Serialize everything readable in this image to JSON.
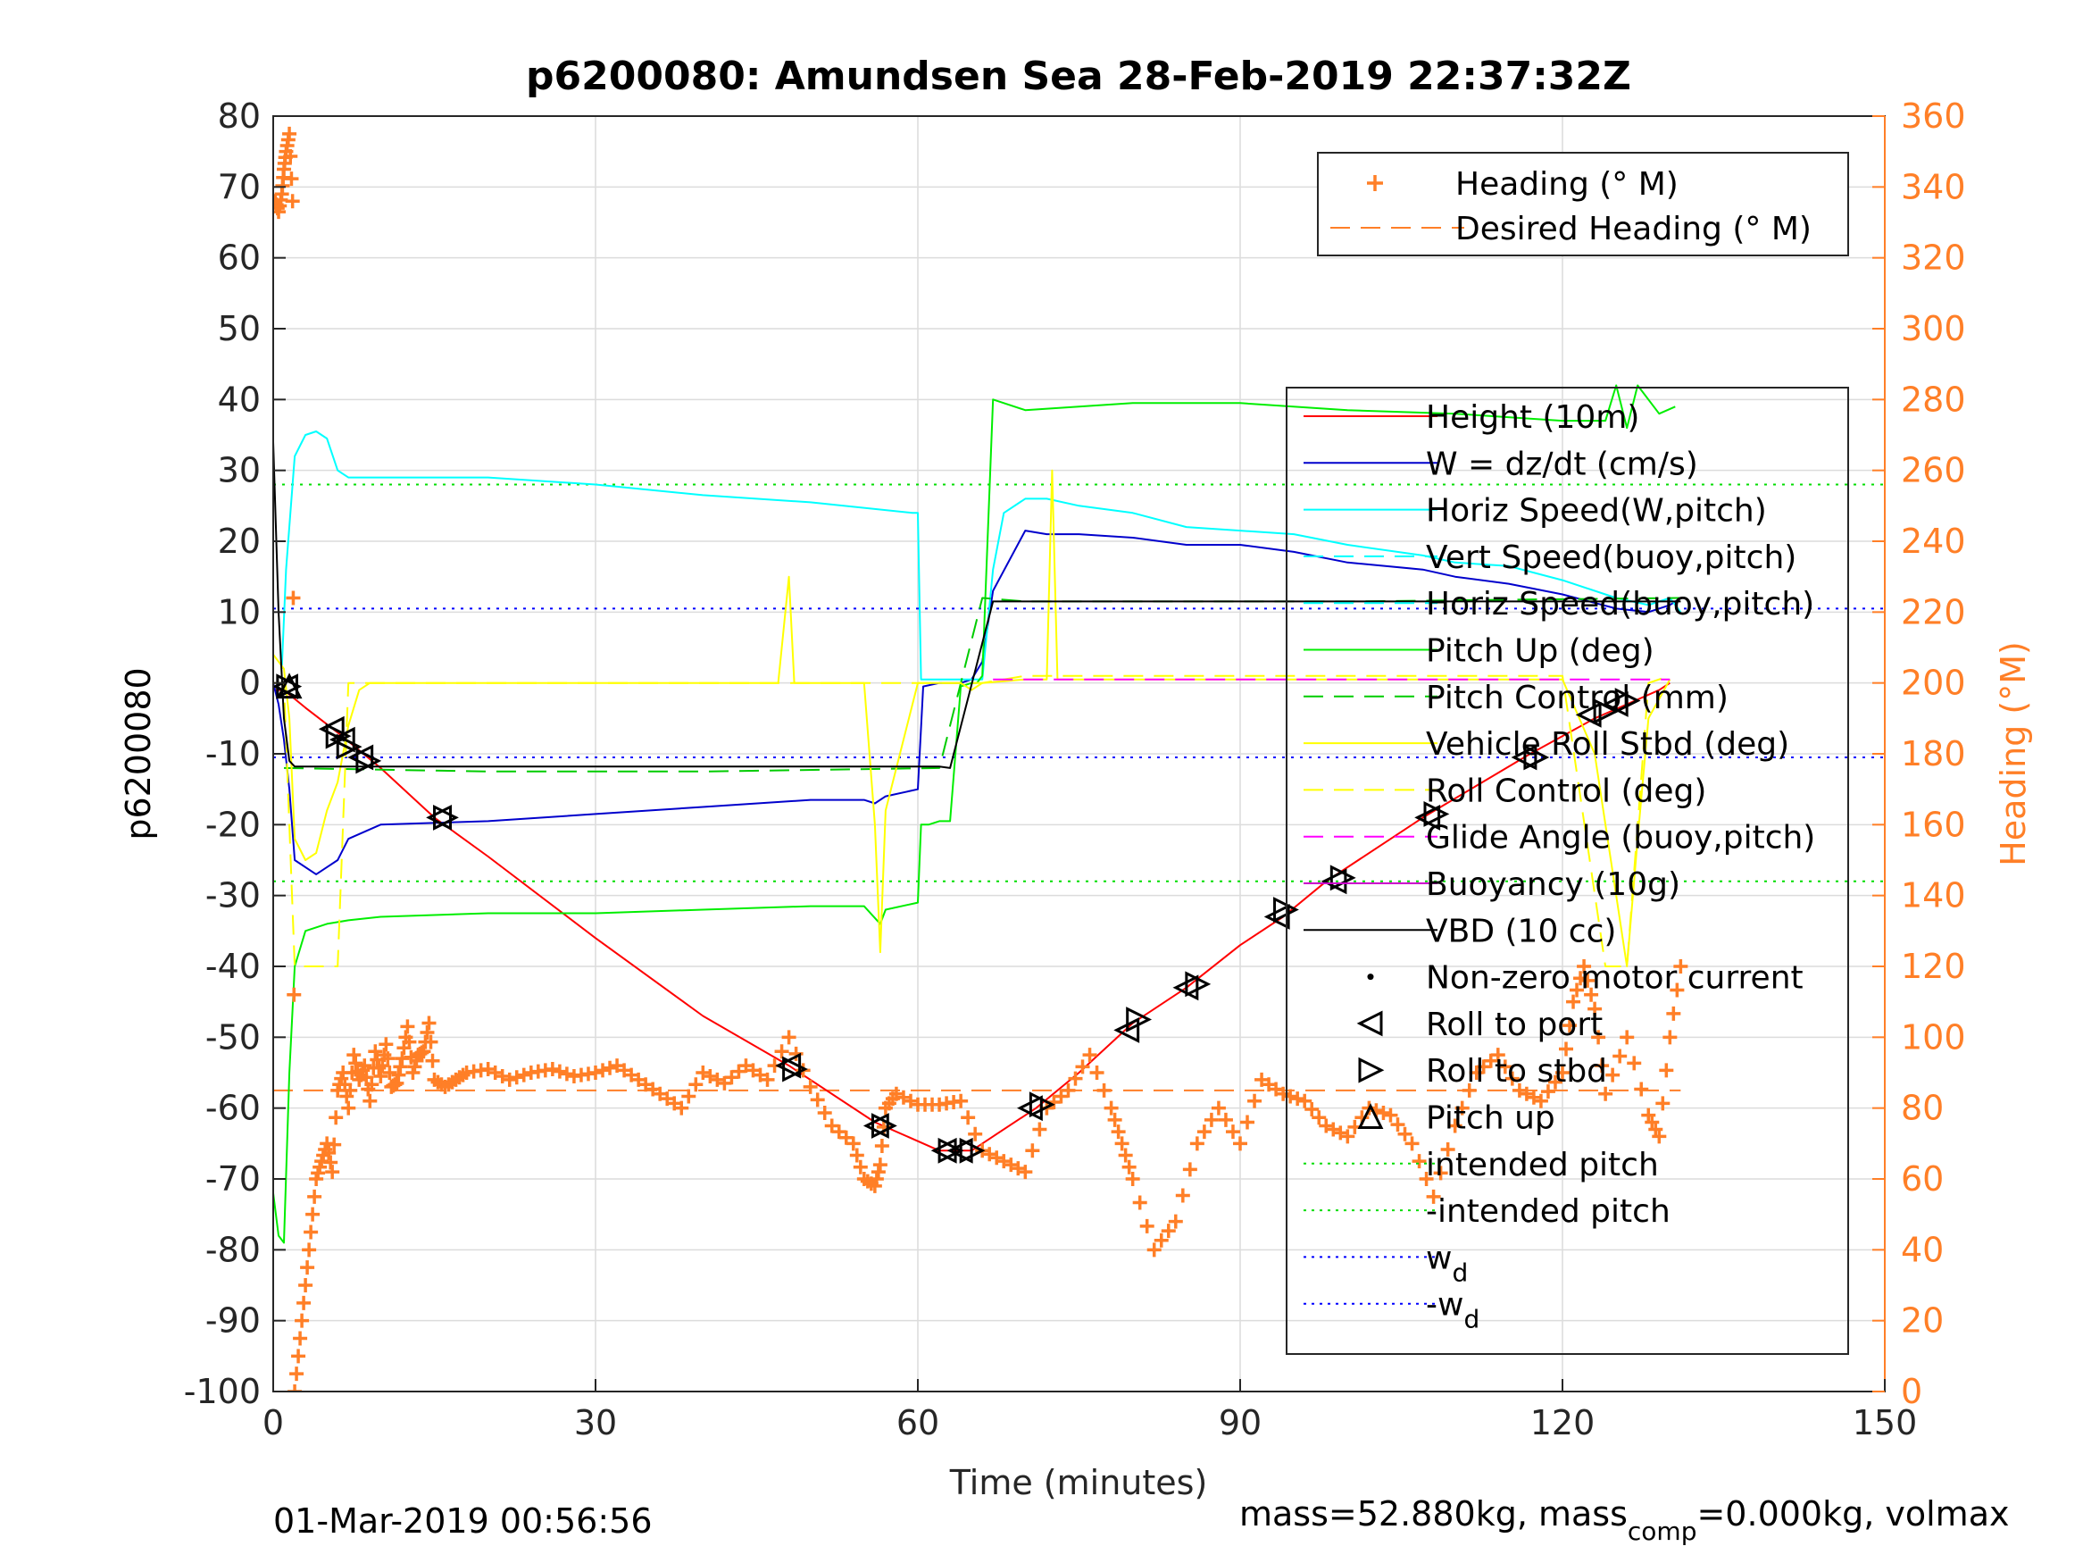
{
  "chart_data": {
    "type": "line",
    "title": "p6200080: Amundsen Sea 28-Feb-2019 22:37:32Z",
    "xlabel": "Time (minutes)",
    "ylabel_left": "p6200080",
    "ylabel_right": "Heading (°M)",
    "xlim": [
      0,
      150
    ],
    "ylim_left": [
      -100,
      80
    ],
    "ylim_right": [
      0,
      360
    ],
    "x_ticks": [
      0,
      30,
      60,
      90,
      120,
      150
    ],
    "y_left_ticks": [
      80,
      70,
      60,
      50,
      40,
      30,
      20,
      10,
      0,
      -10,
      -20,
      -30,
      -40,
      -50,
      -60,
      -70,
      -80,
      -90,
      -100
    ],
    "y_right_ticks": [
      360,
      340,
      320,
      300,
      280,
      260,
      240,
      220,
      200,
      180,
      160,
      140,
      120,
      100,
      80,
      60,
      40,
      20,
      0
    ],
    "grid": true,
    "footer_left": "01-Mar-2019 00:56:56",
    "footer_right": "mass=52.880kg, mass",
    "footer_right_sub": "comp",
    "footer_right_tail": "=0.000kg, volmax",
    "legend_top": [
      {
        "label": "Heading (° M)",
        "color": "#FF7F27",
        "style": "plus"
      },
      {
        "label": "Desired Heading (° M)",
        "color": "#FF7F27",
        "style": "dashed"
      }
    ],
    "legend_main": [
      {
        "label": "Height (10m)",
        "color": "#FF0000",
        "style": "solid"
      },
      {
        "label": "W = dz/dt (cm/s)",
        "color": "#0000CC",
        "style": "solid"
      },
      {
        "label": "Horiz Speed(W,pitch)",
        "color": "#00FFFF",
        "style": "solid"
      },
      {
        "label": "Vert Speed(buoy,pitch)",
        "color": "#00FFFF",
        "style": "dashed"
      },
      {
        "label": "Horiz Speed(buoy,pitch)",
        "color": "#00FFFF",
        "style": "dashed"
      },
      {
        "label": "Pitch Up (deg)",
        "color": "#00EE00",
        "style": "solid"
      },
      {
        "label": "Pitch Control (mm)",
        "color": "#00CC00",
        "style": "dashed"
      },
      {
        "label": "Vehicle Roll Stbd (deg)",
        "color": "#FFFF00",
        "style": "solid"
      },
      {
        "label": "Roll Control (deg)",
        "color": "#FFFF00",
        "style": "dashed"
      },
      {
        "label": "Glide Angle (buoy,pitch)",
        "color": "#FF00FF",
        "style": "dashed"
      },
      {
        "label": "Buoyancy (10g)",
        "color": "#CC00CC",
        "style": "solid"
      },
      {
        "label": "VBD (10 cc)",
        "color": "#000000",
        "style": "solid"
      },
      {
        "label": "Non-zero motor current",
        "color": "#000000",
        "style": "dot"
      },
      {
        "label": "Roll to port",
        "color": "#000000",
        "style": "tri-left"
      },
      {
        "label": "Roll to stbd",
        "color": "#000000",
        "style": "tri-right"
      },
      {
        "label": "Pitch up",
        "color": "#000000",
        "style": "tri-up"
      },
      {
        "label": "intended pitch",
        "color": "#00DD00",
        "style": "dotted"
      },
      {
        "label": "-intended pitch",
        "color": "#00DD00",
        "style": "dotted"
      },
      {
        "label": "w",
        "sub": "d",
        "color": "#0000FF",
        "style": "dotted"
      },
      {
        "label": "-w",
        "sub": "d",
        "color": "#0000FF",
        "style": "dotted"
      }
    ],
    "reference_lines": {
      "intended_pitch": 28,
      "neg_intended_pitch": -28,
      "w_d": 10.5,
      "neg_w_d": -10.5,
      "desired_heading": 85
    },
    "series": [
      {
        "name": "Height (10m)",
        "color": "#FF0000",
        "x": [
          0,
          1,
          3,
          6,
          10,
          15,
          20,
          30,
          40,
          48,
          56,
          62,
          64,
          65,
          67,
          71,
          75,
          80,
          85,
          90,
          94,
          98,
          107,
          117,
          123,
          126,
          129,
          130
        ],
        "y": [
          -1,
          -1,
          -3.5,
          -7,
          -12,
          -19,
          -24.5,
          -36,
          -47,
          -54,
          -62,
          -66,
          -66,
          -66,
          -64,
          -60,
          -55,
          -48,
          -43,
          -37,
          -33,
          -28,
          -19,
          -10,
          -5,
          -3,
          -1,
          0
        ]
      },
      {
        "name": "W = dz/dt (cm/s)",
        "color": "#0000CC",
        "x": [
          0,
          0.5,
          1,
          1.5,
          2,
          4,
          5,
          6,
          7,
          10,
          20,
          30,
          40,
          50,
          55,
          56,
          57,
          60,
          60.5,
          62,
          64,
          65,
          66,
          67,
          70,
          72,
          75,
          80,
          85,
          90,
          95,
          100,
          107,
          110,
          115,
          120,
          125,
          128,
          130,
          131
        ],
        "y": [
          0,
          -3,
          -8,
          -15,
          -25,
          -27,
          -26,
          -25,
          -22,
          -20,
          -19.5,
          -18.5,
          -17.5,
          -16.5,
          -16.5,
          -17,
          -16,
          -15,
          -0.5,
          0,
          0,
          0.5,
          3,
          13,
          21.5,
          21,
          21,
          20.5,
          19.5,
          19.5,
          18.5,
          17,
          16,
          15,
          14,
          12.5,
          10.5,
          10,
          11,
          12
        ]
      },
      {
        "name": "Horiz Speed(W,pitch)",
        "color": "#00FFFF",
        "x": [
          0.8,
          1.2,
          2,
          3,
          4,
          5,
          6,
          7,
          10,
          20,
          30,
          40,
          50,
          59.5,
          60,
          60.3,
          66,
          67,
          68,
          70,
          72,
          75,
          80,
          85,
          90,
          95,
          100,
          107,
          110,
          115,
          120,
          125,
          128,
          130,
          131
        ],
        "y": [
          2,
          16,
          32,
          35,
          35.5,
          34.5,
          30,
          29,
          29,
          29,
          28,
          26.5,
          25.5,
          24,
          24,
          0.5,
          0.5,
          16,
          24,
          26,
          26,
          25,
          24,
          22,
          21.5,
          21,
          19.5,
          18,
          17,
          16.5,
          14.5,
          12,
          11,
          12,
          10
        ]
      },
      {
        "name": "Pitch Up (deg)",
        "color": "#00EE00",
        "x": [
          0,
          0.5,
          1,
          1.5,
          2,
          3,
          5,
          7,
          10,
          20,
          30,
          40,
          50,
          55,
          56.5,
          57,
          60,
          60.3,
          61,
          62,
          63,
          64,
          65,
          65.5,
          66,
          67,
          70,
          75,
          80,
          90,
          100,
          110,
          120,
          124,
          125,
          126,
          127,
          129,
          130.5
        ],
        "y": [
          -72,
          -78,
          -79,
          -55,
          -40,
          -35,
          -34,
          -33.5,
          -33,
          -32.5,
          -32.5,
          -32,
          -31.5,
          -31.5,
          -34,
          -32,
          -31,
          -20,
          -20,
          -19.5,
          -19.5,
          -0.5,
          0,
          0,
          1,
          40,
          38.5,
          39,
          39.5,
          39.5,
          38.5,
          38,
          37,
          37,
          42,
          36,
          42,
          38,
          39
        ]
      },
      {
        "name": "Pitch Control (mm)",
        "color": "#00CC00",
        "dashed": true,
        "x": [
          1,
          20,
          40,
          62,
          66,
          70,
          100,
          131
        ],
        "y": [
          -12,
          -12.5,
          -12.5,
          -12,
          12,
          11.5,
          11.5,
          12
        ]
      },
      {
        "name": "Vehicle Roll Stbd (deg)",
        "color": "#FFFF00",
        "x": [
          0,
          1,
          1.5,
          2,
          3,
          4,
          5,
          6,
          7,
          8,
          9,
          10,
          15,
          20,
          30,
          40,
          47,
          48,
          48.5,
          50,
          55,
          56,
          56.5,
          57,
          60,
          64,
          65,
          66,
          70,
          72,
          72.5,
          73,
          80,
          90,
          100,
          110,
          120,
          123,
          125,
          126,
          127,
          128,
          130
        ],
        "y": [
          4,
          2,
          -5,
          -22,
          -25,
          -24,
          -18,
          -14,
          -6,
          -1,
          0,
          0,
          0,
          0,
          0,
          0,
          0,
          15,
          0,
          0,
          0,
          -20,
          -38,
          -18,
          0,
          0,
          -1,
          0,
          0.5,
          0.5,
          30,
          0.5,
          0.5,
          0.5,
          0.5,
          0.5,
          0.5,
          -10,
          -30,
          -40,
          -22,
          -5,
          0.5
        ]
      },
      {
        "name": "Roll Control (deg)",
        "color": "#FFFF00",
        "dashed": true,
        "x": [
          0,
          1,
          2,
          3,
          5,
          6,
          7,
          10,
          60,
          66,
          70,
          80,
          90,
          100,
          110,
          120,
          124,
          126,
          128,
          130
        ],
        "y": [
          0,
          0,
          -40,
          -40,
          -40,
          -40,
          0,
          0,
          0,
          0,
          1,
          1,
          1,
          1,
          1,
          1,
          -40,
          -40,
          0,
          1
        ]
      },
      {
        "name": "Glide Angle (buoy,pitch)",
        "color": "#FF00FF",
        "dashed": true,
        "x": [
          67,
          130
        ],
        "y": [
          0.5,
          0.5
        ]
      },
      {
        "name": "VBD (10 cc)",
        "color": "#000000",
        "x": [
          0,
          0.5,
          1,
          1.5,
          2,
          10,
          30,
          62,
          63,
          67,
          70,
          100,
          131
        ],
        "y": [
          34,
          10,
          -5,
          -11,
          -11.8,
          -11.8,
          -11.8,
          -11.8,
          -12,
          11.5,
          11.5,
          11.5,
          11.5
        ]
      }
    ],
    "heading": {
      "color": "#FF7F27",
      "x": [
        0.2,
        0.5,
        0.8,
        1,
        1.2,
        1.5,
        1.8,
        2,
        2.5,
        3,
        3.5,
        4,
        4.5,
        5,
        5.5,
        6,
        6.5,
        7,
        7.5,
        8,
        8.5,
        9,
        9.5,
        10,
        10.5,
        11,
        11.5,
        12,
        12.5,
        13,
        13.5,
        14,
        14.5,
        15,
        16,
        17,
        18,
        20,
        22,
        24,
        26,
        28,
        30,
        32,
        34,
        36,
        38,
        40,
        42,
        44,
        46,
        48,
        50,
        52,
        54,
        55,
        56,
        56.5,
        57,
        58,
        60,
        62,
        64,
        66,
        68,
        70,
        72,
        74,
        76,
        78,
        79,
        80,
        82,
        84,
        86,
        88,
        90,
        92,
        94,
        96,
        98,
        100,
        102,
        104,
        106,
        108,
        110,
        112,
        114,
        116,
        118,
        120,
        121,
        122,
        123,
        124,
        126,
        128,
        129,
        130,
        131
      ],
      "y": [
        336,
        333,
        338,
        345,
        350,
        355,
        336,
        0,
        15,
        30,
        45,
        60,
        65,
        70,
        62,
        85,
        90,
        80,
        95,
        88,
        92,
        82,
        96,
        89,
        98,
        86,
        87,
        94,
        103,
        90,
        95,
        96,
        104,
        88,
        86,
        88,
        90,
        91,
        88,
        90,
        91,
        89,
        90,
        92,
        88,
        84,
        80,
        90,
        87,
        92,
        88,
        100,
        86,
        75,
        70,
        60,
        58,
        64,
        80,
        84,
        81,
        81,
        82,
        68,
        65,
        62,
        80,
        85,
        95,
        80,
        70,
        60,
        40,
        48,
        70,
        80,
        70,
        88,
        84,
        82,
        75,
        72,
        80,
        78,
        70,
        55,
        75,
        90,
        95,
        85,
        82,
        90,
        110,
        120,
        108,
        84,
        100,
        78,
        72,
        100,
        120
      ]
    },
    "markers": {
      "roll_port": [
        [
          1.2,
          -0.5
        ],
        [
          5.5,
          -6.5
        ],
        [
          6.5,
          -8
        ],
        [
          8.2,
          -10.5
        ],
        [
          15.5,
          -19
        ],
        [
          48,
          -54
        ],
        [
          56.2,
          -62.5
        ],
        [
          62.5,
          -66
        ],
        [
          64,
          -66
        ],
        [
          70.5,
          -60
        ],
        [
          79.5,
          -49
        ],
        [
          85,
          -43
        ],
        [
          93.5,
          -33
        ],
        [
          98.8,
          -28
        ],
        [
          107.5,
          -19
        ],
        [
          116.5,
          -10.5
        ],
        [
          122.5,
          -4.5
        ],
        [
          125,
          -3
        ]
      ],
      "roll_stbd": [
        [
          1.4,
          -0.5
        ],
        [
          6,
          -7.5
        ],
        [
          7,
          -9
        ],
        [
          8.8,
          -11
        ],
        [
          16,
          -19
        ],
        [
          48.5,
          -54.5
        ],
        [
          56.8,
          -62.5
        ],
        [
          63,
          -66
        ],
        [
          65,
          -66
        ],
        [
          71.5,
          -59.5
        ],
        [
          80.5,
          -47.5
        ],
        [
          86,
          -42.5
        ],
        [
          94.2,
          -32
        ],
        [
          99.5,
          -27.5
        ],
        [
          108.2,
          -18.5
        ],
        [
          117.5,
          -10.5
        ],
        [
          124,
          -4
        ],
        [
          126,
          -2.5
        ]
      ],
      "pitch_up": [
        [
          1.5,
          -0.5
        ]
      ]
    }
  }
}
